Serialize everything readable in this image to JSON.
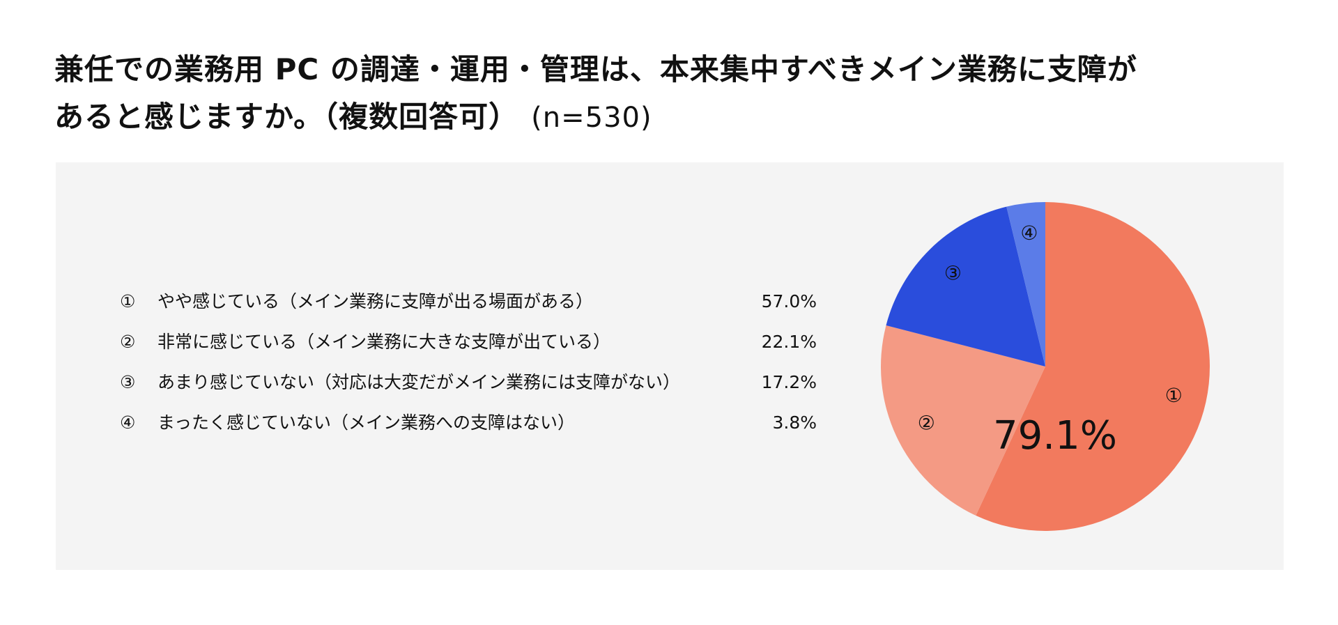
{
  "title": {
    "line1": "兼任での業務用 PC の調達・運用・管理は、本来集中すべきメイン業務に支障が",
    "line2": "あると感じますか。（複数回答可）",
    "n": "(n=530)"
  },
  "center_label": "79.1%",
  "chart_data": {
    "type": "pie",
    "title": "兼任での業務用 PC の調達・運用・管理は、本来集中すべきメイン業務に支障があると感じますか。（複数回答可）",
    "slices": [
      {
        "marker": "①",
        "label": "やや感じている（メイン業務に支障が出る場面がある）",
        "value": 57.0,
        "value_label": "57.0%",
        "color": "#f27a5e"
      },
      {
        "marker": "②",
        "label": "非常に感じている（メイン業務に大きな支障が出ている）",
        "value": 22.1,
        "value_label": "22.1%",
        "color": "#f49a84"
      },
      {
        "marker": "③",
        "label": "あまり感じていない（対応は大変だがメイン業務には支障がない）",
        "value": 17.2,
        "value_label": "17.2%",
        "color": "#2a4ddc"
      },
      {
        "marker": "④",
        "label": "まったく感じていない（メイン業務への支障はない）",
        "value": 3.8,
        "value_label": "3.8%",
        "color": "#5b7ce8"
      }
    ],
    "annotation": "79.1%",
    "legend_position": "left"
  }
}
